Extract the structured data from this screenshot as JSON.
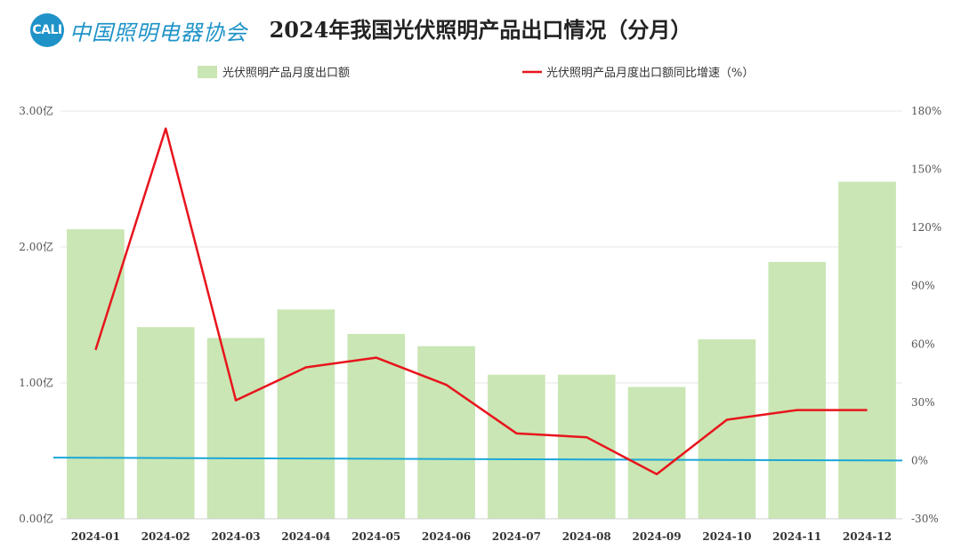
{
  "header": {
    "logo_badge": "CALI",
    "logo_text": "中国照明电器协会",
    "title": "2024年我国光伏照明产品出口情况（分月）"
  },
  "colors": {
    "bar": "#c9e6b4",
    "line": "#e8141c",
    "baseline": "#1ba6d8",
    "grid": "#e6e6e6",
    "logo": "#1f93c8"
  },
  "chart_data": {
    "type": "bar",
    "categories": [
      "2024-01",
      "2024-02",
      "2024-03",
      "2024-04",
      "2024-05",
      "2024-06",
      "2024-07",
      "2024-08",
      "2024-09",
      "2024-10",
      "2024-11",
      "2024-12"
    ],
    "series": [
      {
        "name": "光伏照明产品月度出口额",
        "type": "bar",
        "axis": "left",
        "values": [
          2.13,
          1.41,
          1.33,
          1.54,
          1.36,
          1.27,
          1.06,
          1.06,
          0.97,
          1.32,
          1.89,
          2.48
        ]
      },
      {
        "name": "光伏照明产品月度出口额同比增速（%）",
        "type": "line",
        "axis": "right",
        "values": [
          57,
          171,
          31,
          48,
          53,
          39,
          14,
          12,
          -7,
          21,
          26,
          26
        ]
      }
    ],
    "trendline": {
      "axis": "right",
      "start": 1.5,
      "end": 0
    },
    "left_axis": {
      "ticks": [
        "0.00亿",
        "1.00亿",
        "2.00亿",
        "3.00亿"
      ],
      "ylim": [
        0,
        3
      ]
    },
    "right_axis": {
      "ticks": [
        "-30%",
        "0%",
        "30%",
        "60%",
        "90%",
        "120%",
        "150%",
        "180%"
      ],
      "ylim": [
        -30,
        180
      ]
    },
    "grid": true,
    "legend_position": "top"
  }
}
